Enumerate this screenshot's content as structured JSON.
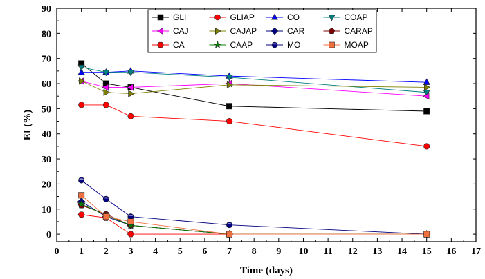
{
  "chart_data": {
    "type": "line",
    "title": "",
    "xlabel": "Time (days)",
    "ylabel": "EI (%)",
    "xlim": [
      0,
      17
    ],
    "ylim": [
      -3,
      90
    ],
    "xticks": [
      0,
      1,
      2,
      3,
      4,
      5,
      6,
      7,
      8,
      9,
      10,
      11,
      12,
      13,
      14,
      15,
      16,
      17
    ],
    "yticks": [
      0,
      10,
      20,
      30,
      40,
      50,
      60,
      70,
      80,
      90
    ],
    "grid": false,
    "legend_position": "top-right",
    "series": [
      {
        "name": "GLI",
        "color": "#000000",
        "marker": "square",
        "x": [
          1,
          2,
          3,
          7,
          15
        ],
        "y": [
          68,
          60,
          58.5,
          51,
          49
        ]
      },
      {
        "name": "GLIAP",
        "color": "#ff0000",
        "marker": "circle",
        "x": [
          1,
          2,
          3,
          7,
          15
        ],
        "y": [
          51.5,
          51.5,
          47,
          45,
          35
        ]
      },
      {
        "name": "CO",
        "color": "#0000ff",
        "marker": "triangle-up",
        "x": [
          1,
          2,
          3,
          7,
          15
        ],
        "y": [
          64.5,
          64.5,
          65,
          63,
          60.5
        ]
      },
      {
        "name": "COAP",
        "color": "#008080",
        "marker": "triangle-down",
        "x": [
          1,
          2,
          3,
          7,
          15
        ],
        "y": [
          66.5,
          64.5,
          64.5,
          62.5,
          56.5
        ]
      },
      {
        "name": "CAJ",
        "color": "#ff00ff",
        "marker": "triangle-left",
        "x": [
          1,
          2,
          3,
          7,
          15
        ],
        "y": [
          61,
          58.5,
          58.5,
          60,
          55
        ]
      },
      {
        "name": "CAJAP",
        "color": "#808000",
        "marker": "triangle-right",
        "x": [
          1,
          2,
          3,
          7,
          15
        ],
        "y": [
          61,
          56.5,
          56,
          59.5,
          58.5
        ]
      },
      {
        "name": "CAR",
        "color": "#000080",
        "marker": "diamond",
        "x": [
          1,
          2,
          3,
          7,
          15
        ],
        "y": [
          13,
          7,
          3.5,
          0,
          0
        ]
      },
      {
        "name": "CARAP",
        "color": "#800000",
        "marker": "pentagon",
        "x": [
          1,
          2,
          3,
          7,
          15
        ],
        "y": [
          11.5,
          8,
          3.5,
          0,
          0
        ]
      },
      {
        "name": "CA",
        "color": "#ff0000",
        "marker": "hexagon",
        "x": [
          1,
          2,
          3,
          7,
          15
        ],
        "y": [
          7.8,
          6.5,
          0,
          0,
          0
        ]
      },
      {
        "name": "CAAP",
        "color": "#008000",
        "marker": "star",
        "x": [
          1,
          2,
          3,
          7,
          15
        ],
        "y": [
          12,
          7.5,
          3.5,
          0,
          0
        ]
      },
      {
        "name": "MO",
        "color": "#000080",
        "marker": "circle-half",
        "x": [
          1,
          2,
          3,
          7,
          15
        ],
        "y": [
          21.5,
          14,
          7,
          3.7,
          0
        ]
      },
      {
        "name": "MOAP",
        "color": "#f07040",
        "marker": "square",
        "x": [
          1,
          2,
          3,
          7,
          15
        ],
        "y": [
          15.5,
          7,
          5,
          0,
          0
        ]
      }
    ]
  }
}
